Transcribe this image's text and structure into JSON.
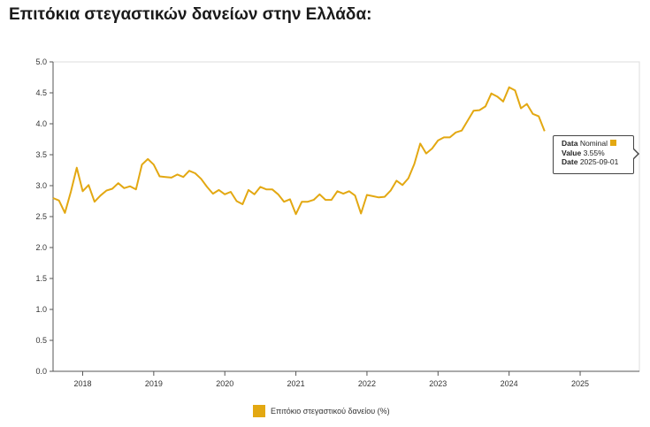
{
  "title": "Επιτόκια στεγαστικών δανείων στην Ελλάδα:",
  "colors": {
    "series": "#e3a812",
    "axis": "#555555",
    "frame": "#dddddd"
  },
  "tooltip": {
    "data_label": "Data",
    "data_value": "Nominal",
    "value_label": "Value",
    "value_value": "3.55%",
    "date_label": "Date",
    "date_value": "2025-09-01"
  },
  "legend": {
    "label": "Επιτόκιο στεγαστικού δανείου (%)"
  },
  "chart_data": {
    "type": "line",
    "title": "Επιτόκια στεγαστικών δανείων στην Ελλάδα:",
    "xlabel": "",
    "ylabel": "",
    "ylim": [
      0,
      5
    ],
    "y_ticks": [
      "0.0",
      "0.5",
      "1.0",
      "1.5",
      "2.0",
      "2.5",
      "3.0",
      "3.5",
      "4.0",
      "4.5",
      "5.0"
    ],
    "x_ticks": [
      "2018",
      "2019",
      "2020",
      "2021",
      "2022",
      "2023",
      "2024",
      "2025"
    ],
    "grid": false,
    "legend_position": "bottom",
    "series": [
      {
        "name": "Επιτόκιο στεγαστικού δανείου (%)",
        "x": [
          "2017-08",
          "2017-09",
          "2017-10",
          "2017-11",
          "2017-12",
          "2018-01",
          "2018-02",
          "2018-03",
          "2018-04",
          "2018-05",
          "2018-06",
          "2018-07",
          "2018-08",
          "2018-09",
          "2018-10",
          "2018-11",
          "2018-12",
          "2019-01",
          "2019-02",
          "2019-03",
          "2019-04",
          "2019-05",
          "2019-06",
          "2019-07",
          "2019-08",
          "2019-09",
          "2019-10",
          "2019-11",
          "2019-12",
          "2020-01",
          "2020-02",
          "2020-03",
          "2020-04",
          "2020-05",
          "2020-06",
          "2020-07",
          "2020-08",
          "2020-09",
          "2020-10",
          "2020-11",
          "2020-12",
          "2021-01",
          "2021-02",
          "2021-03",
          "2021-04",
          "2021-05",
          "2021-06",
          "2021-07",
          "2021-08",
          "2021-09",
          "2021-10",
          "2021-11",
          "2021-12",
          "2022-01",
          "2022-02",
          "2022-03",
          "2022-04",
          "2022-05",
          "2022-06",
          "2022-07",
          "2022-08",
          "2022-09",
          "2022-10",
          "2022-11",
          "2022-12",
          "2023-01",
          "2023-02",
          "2023-03",
          "2023-04",
          "2023-05",
          "2023-06",
          "2023-07",
          "2023-08",
          "2023-09",
          "2023-10",
          "2023-11",
          "2023-12",
          "2024-01",
          "2024-02",
          "2024-03",
          "2024-04",
          "2024-05",
          "2024-06",
          "2024-07"
        ],
        "values": [
          2.8,
          2.76,
          2.56,
          2.9,
          3.29,
          2.91,
          3.01,
          2.74,
          2.84,
          2.92,
          2.95,
          3.04,
          2.96,
          2.99,
          2.94,
          3.34,
          3.43,
          3.34,
          3.15,
          3.14,
          3.13,
          3.18,
          3.14,
          3.24,
          3.2,
          3.11,
          2.98,
          2.87,
          2.93,
          2.86,
          2.9,
          2.75,
          2.7,
          2.93,
          2.86,
          2.98,
          2.94,
          2.94,
          2.86,
          2.74,
          2.78,
          2.54,
          2.74,
          2.74,
          2.77,
          2.86,
          2.77,
          2.77,
          2.91,
          2.87,
          2.91,
          2.84,
          2.55,
          2.85,
          2.83,
          2.81,
          2.82,
          2.92,
          3.08,
          3.01,
          3.12,
          3.35,
          3.68,
          3.52,
          3.6,
          3.73,
          3.78,
          3.78,
          3.86,
          3.89,
          4.05,
          4.21,
          4.22,
          4.28,
          4.49,
          4.44,
          4.36,
          4.59,
          4.54,
          4.25,
          4.32,
          4.16,
          4.12,
          3.88
        ]
      }
    ]
  }
}
